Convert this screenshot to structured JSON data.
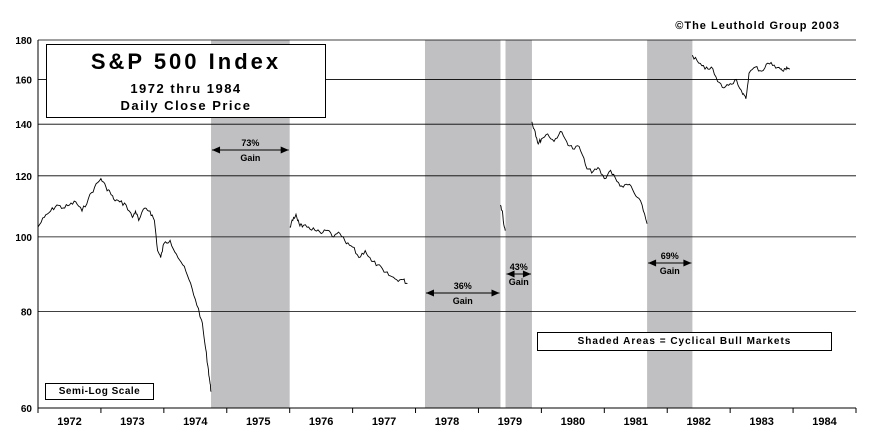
{
  "copyright": "©The Leuthold Group 2003",
  "title": "S&P 500 Index",
  "subtitle_1": "1972 thru 1984",
  "subtitle_2": "Daily Close Price",
  "legend_note": "Shaded Areas = Cyclical Bull Markets",
  "scale_note": "Semi-Log Scale",
  "colors": {
    "shade": "#c0c0c2",
    "line": "#000000",
    "grid": "#000000"
  },
  "chart_data": {
    "type": "line",
    "title": "S&P 500 Index",
    "subtitle": "1972 thru 1984 Daily Close Price",
    "xlabel": "",
    "ylabel": "",
    "y_scale": "log",
    "ylim": [
      60,
      180
    ],
    "xlim": [
      1972.0,
      1985.0
    ],
    "y_ticks": [
      60,
      80,
      100,
      120,
      140,
      160,
      180
    ],
    "x_tick_labels": [
      "1972",
      "1973",
      "1974",
      "1975",
      "1976",
      "1977",
      "1978",
      "1979",
      "1980",
      "1981",
      "1982",
      "1983",
      "1984"
    ],
    "gridlines": "horizontal",
    "shaded_periods": [
      {
        "start": 1974.75,
        "end": 1976.0,
        "gain_pct": "73%",
        "gain_word": "Gain"
      },
      {
        "start": 1978.15,
        "end": 1979.35,
        "gain_pct": "36%",
        "gain_word": "Gain"
      },
      {
        "start": 1979.43,
        "end": 1979.85,
        "gain_pct": "43%",
        "gain_word": "Gain"
      },
      {
        "start": 1981.68,
        "end": 1982.4,
        "gain_pct": "69%",
        "gain_word": "Gain"
      }
    ],
    "series": [
      {
        "segments": [
          [
            [
              1972.0,
              103
            ],
            [
              1972.1,
              106
            ],
            [
              1972.2,
              108
            ],
            [
              1972.3,
              110
            ],
            [
              1972.4,
              109
            ],
            [
              1972.5,
              110
            ],
            [
              1972.6,
              111
            ],
            [
              1972.7,
              108
            ],
            [
              1972.8,
              112
            ],
            [
              1972.9,
              116
            ],
            [
              1973.0,
              119
            ],
            [
              1973.08,
              116
            ],
            [
              1973.15,
              114
            ],
            [
              1973.2,
              112
            ],
            [
              1973.3,
              111
            ],
            [
              1973.4,
              110
            ],
            [
              1973.5,
              106
            ],
            [
              1973.55,
              108
            ],
            [
              1973.6,
              105
            ],
            [
              1973.7,
              109
            ],
            [
              1973.78,
              108
            ],
            [
              1973.85,
              105
            ],
            [
              1973.9,
              96
            ],
            [
              1973.95,
              94
            ],
            [
              1974.0,
              98
            ],
            [
              1974.1,
              99
            ],
            [
              1974.2,
              95
            ],
            [
              1974.3,
              92
            ],
            [
              1974.4,
              88
            ],
            [
              1974.5,
              83
            ],
            [
              1974.6,
              78
            ],
            [
              1974.65,
              73
            ],
            [
              1974.7,
              68
            ],
            [
              1974.73,
              65
            ],
            [
              1974.75,
              63
            ]
          ],
          [
            [
              1976.0,
              103
            ],
            [
              1976.05,
              105
            ],
            [
              1976.1,
              107
            ],
            [
              1976.15,
              104
            ],
            [
              1976.2,
              103
            ],
            [
              1976.3,
              103
            ],
            [
              1976.4,
              102
            ],
            [
              1976.5,
              101
            ],
            [
              1976.6,
              102
            ],
            [
              1976.7,
              100
            ],
            [
              1976.8,
              101
            ],
            [
              1976.9,
              98
            ],
            [
              1977.0,
              97
            ],
            [
              1977.1,
              94
            ],
            [
              1977.2,
              96
            ],
            [
              1977.3,
              93
            ],
            [
              1977.4,
              92
            ],
            [
              1977.5,
              90
            ],
            [
              1977.6,
              89
            ],
            [
              1977.7,
              88
            ],
            [
              1977.8,
              88
            ],
            [
              1977.87,
              87
            ]
          ],
          [
            [
              1979.35,
              110
            ],
            [
              1979.38,
              108
            ],
            [
              1979.41,
              103
            ],
            [
              1979.43,
              102
            ]
          ],
          [
            [
              1979.85,
              141
            ],
            [
              1979.9,
              137
            ],
            [
              1979.95,
              132
            ],
            [
              1980.0,
              134
            ],
            [
              1980.1,
              136
            ],
            [
              1980.2,
              133
            ],
            [
              1980.3,
              137
            ],
            [
              1980.4,
              133
            ],
            [
              1980.5,
              130
            ],
            [
              1980.6,
              131
            ],
            [
              1980.7,
              124
            ],
            [
              1980.8,
              121
            ],
            [
              1980.9,
              123
            ],
            [
              1981.0,
              119
            ],
            [
              1981.1,
              122
            ],
            [
              1981.2,
              118
            ],
            [
              1981.3,
              116
            ],
            [
              1981.4,
              117
            ],
            [
              1981.5,
              113
            ],
            [
              1981.6,
              110
            ],
            [
              1981.68,
              104
            ]
          ],
          [
            [
              1982.4,
              172
            ],
            [
              1982.5,
              168
            ],
            [
              1982.6,
              165
            ],
            [
              1982.7,
              166
            ],
            [
              1982.8,
              159
            ],
            [
              1982.9,
              156
            ],
            [
              1983.0,
              158
            ],
            [
              1983.1,
              160
            ],
            [
              1983.2,
              153
            ],
            [
              1983.25,
              151
            ],
            [
              1983.3,
              163
            ],
            [
              1983.4,
              166
            ],
            [
              1983.5,
              164
            ],
            [
              1983.6,
              168
            ],
            [
              1983.7,
              167
            ],
            [
              1983.8,
              165
            ],
            [
              1983.85,
              164
            ],
            [
              1983.9,
              166
            ],
            [
              1983.95,
              165
            ]
          ]
        ]
      }
    ]
  }
}
